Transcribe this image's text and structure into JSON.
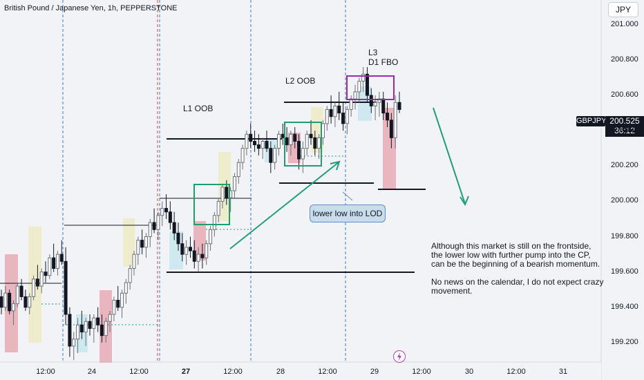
{
  "title": "British Pound / Japanese Yen, 1h, PEPPERSTONE",
  "currency": "JPY",
  "symbol_tag": "GBPJPY",
  "current_price": "200.525",
  "countdown": "36:12",
  "annotations": {
    "l1": "L1 OOB",
    "l2": "L2 OOB",
    "l3_line1": "L3",
    "l3_line2": "D1 FBO",
    "callout": "lower low into LOD"
  },
  "note": {
    "p1": [
      "Although this market is still on the frontside,",
      "the lower low with further pump into the CP,",
      "can be the beginning of a bearish momentum."
    ],
    "p2": [
      "No news on the calendar, I do not expect crazy",
      "movement."
    ]
  },
  "colors": {
    "up": "#6b6f77",
    "down": "#131722",
    "zone_red": "#e5a0ac",
    "zone_yellow": "#ecebc4",
    "zone_blue": "#c9e6ee",
    "box_green": "#1e9e6e",
    "box_purple": "#9c27b0",
    "arrow": "#1e9e7e",
    "session_blue": "#3a7bd5",
    "session_red": "#d04848"
  },
  "chart_data": {
    "type": "candlestick",
    "y_ticks": [
      "201.000",
      "200.800",
      "200.600",
      "200.400",
      "200.200",
      "200.000",
      "199.800",
      "199.600",
      "199.400",
      "199.200"
    ],
    "x_ticks": [
      {
        "label": "12:00",
        "bold": false
      },
      {
        "label": "24",
        "bold": false
      },
      {
        "label": "12:00",
        "bold": false
      },
      {
        "label": "27",
        "bold": true
      },
      {
        "label": "12:00",
        "bold": false
      },
      {
        "label": "28",
        "bold": false
      },
      {
        "label": "12:00",
        "bold": false
      },
      {
        "label": "29",
        "bold": false
      },
      {
        "label": "12:00",
        "bold": false
      },
      {
        "label": "30",
        "bold": false
      },
      {
        "label": "12:00",
        "bold": false
      },
      {
        "label": "31",
        "bold": false
      }
    ],
    "ylim": [
      199.09,
      201.14
    ],
    "candles": [
      [
        199.46,
        199.5,
        199.36,
        199.4
      ],
      [
        199.4,
        199.52,
        199.38,
        199.48
      ],
      [
        199.48,
        199.5,
        199.36,
        199.38
      ],
      [
        199.38,
        199.44,
        199.3,
        199.42
      ],
      [
        199.42,
        199.54,
        199.4,
        199.52
      ],
      [
        199.52,
        199.56,
        199.44,
        199.46
      ],
      [
        199.46,
        199.5,
        199.38,
        199.4
      ],
      [
        199.4,
        199.48,
        199.36,
        199.46
      ],
      [
        199.46,
        199.58,
        199.44,
        199.56
      ],
      [
        199.56,
        199.64,
        199.5,
        199.52
      ],
      [
        199.52,
        199.62,
        199.48,
        199.6
      ],
      [
        199.6,
        199.66,
        199.54,
        199.58
      ],
      [
        199.58,
        199.7,
        199.56,
        199.68
      ],
      [
        199.68,
        199.76,
        199.6,
        199.62
      ],
      [
        199.62,
        199.72,
        199.58,
        199.7
      ],
      [
        199.7,
        199.78,
        199.64,
        199.66
      ],
      [
        199.66,
        199.74,
        199.3,
        199.36
      ],
      [
        199.36,
        199.4,
        199.12,
        199.18
      ],
      [
        199.18,
        199.26,
        199.1,
        199.22
      ],
      [
        199.22,
        199.34,
        199.14,
        199.3
      ],
      [
        199.3,
        199.38,
        199.22,
        199.26
      ],
      [
        199.26,
        199.34,
        199.18,
        199.32
      ],
      [
        199.32,
        199.36,
        199.24,
        199.28
      ],
      [
        199.28,
        199.36,
        199.2,
        199.34
      ],
      [
        199.34,
        199.4,
        199.26,
        199.3
      ],
      [
        199.3,
        199.36,
        199.2,
        199.24
      ],
      [
        199.24,
        199.34,
        199.2,
        199.32
      ],
      [
        199.32,
        199.38,
        199.26,
        199.36
      ],
      [
        199.36,
        199.46,
        199.32,
        199.44
      ],
      [
        199.44,
        199.52,
        199.38,
        199.4
      ],
      [
        199.4,
        199.5,
        199.34,
        199.48
      ],
      [
        199.48,
        199.56,
        199.42,
        199.54
      ],
      [
        199.54,
        199.64,
        199.5,
        199.62
      ],
      [
        199.62,
        199.72,
        199.58,
        199.7
      ],
      [
        199.7,
        199.8,
        199.64,
        199.78
      ],
      [
        199.78,
        199.84,
        199.7,
        199.74
      ],
      [
        199.74,
        199.82,
        199.68,
        199.8
      ],
      [
        199.8,
        199.9,
        199.74,
        199.88
      ],
      [
        199.88,
        199.96,
        199.82,
        199.84
      ],
      [
        199.84,
        199.94,
        199.78,
        199.92
      ],
      [
        199.92,
        200.0,
        199.86,
        199.96
      ],
      [
        199.96,
        200.04,
        199.9,
        199.94
      ],
      [
        199.94,
        200.0,
        199.84,
        199.88
      ],
      [
        199.88,
        199.94,
        199.78,
        199.82
      ],
      [
        199.82,
        199.88,
        199.72,
        199.76
      ],
      [
        199.76,
        199.82,
        199.66,
        199.7
      ],
      [
        199.7,
        199.78,
        199.64,
        199.74
      ],
      [
        199.74,
        199.8,
        199.68,
        199.72
      ],
      [
        199.72,
        199.78,
        199.62,
        199.66
      ],
      [
        199.66,
        199.74,
        199.6,
        199.7
      ],
      [
        199.7,
        199.76,
        199.62,
        199.68
      ],
      [
        199.68,
        199.78,
        199.64,
        199.76
      ],
      [
        199.76,
        199.86,
        199.72,
        199.84
      ],
      [
        199.84,
        199.94,
        199.8,
        199.92
      ],
      [
        199.92,
        200.02,
        199.88,
        200.0
      ],
      [
        200.0,
        200.1,
        199.96,
        200.08
      ],
      [
        200.08,
        200.12,
        199.98,
        200.02
      ],
      [
        200.02,
        200.08,
        199.94,
        200.06
      ],
      [
        200.06,
        200.16,
        200.02,
        200.14
      ],
      [
        200.14,
        200.24,
        200.1,
        200.22
      ],
      [
        200.22,
        200.32,
        200.18,
        200.3
      ],
      [
        200.3,
        200.4,
        200.26,
        200.38
      ],
      [
        200.38,
        200.44,
        200.3,
        200.34
      ],
      [
        200.34,
        200.4,
        200.28,
        200.32
      ],
      [
        200.32,
        200.38,
        200.26,
        200.3
      ],
      [
        200.3,
        200.36,
        200.24,
        200.34
      ],
      [
        200.34,
        200.4,
        200.28,
        200.3
      ],
      [
        200.3,
        200.34,
        200.16,
        200.22
      ],
      [
        200.22,
        200.32,
        200.18,
        200.3
      ],
      [
        200.3,
        200.4,
        200.26,
        200.38
      ],
      [
        200.38,
        200.44,
        200.32,
        200.36
      ],
      [
        200.36,
        200.42,
        200.28,
        200.32
      ],
      [
        200.32,
        200.4,
        200.26,
        200.38
      ],
      [
        200.38,
        200.42,
        200.3,
        200.34
      ],
      [
        200.34,
        200.38,
        200.18,
        200.24
      ],
      [
        200.24,
        200.34,
        200.16,
        200.3
      ],
      [
        200.3,
        200.4,
        200.26,
        200.38
      ],
      [
        200.38,
        200.46,
        200.32,
        200.36
      ],
      [
        200.36,
        200.4,
        200.26,
        200.3
      ],
      [
        200.3,
        200.38,
        200.24,
        200.36
      ],
      [
        200.36,
        200.46,
        200.32,
        200.44
      ],
      [
        200.44,
        200.54,
        200.4,
        200.52
      ],
      [
        200.52,
        200.6,
        200.44,
        200.48
      ],
      [
        200.48,
        200.56,
        200.42,
        200.54
      ],
      [
        200.54,
        200.62,
        200.46,
        200.5
      ],
      [
        200.5,
        200.56,
        200.4,
        200.44
      ],
      [
        200.44,
        200.54,
        200.38,
        200.52
      ],
      [
        200.52,
        200.6,
        200.48,
        200.58
      ],
      [
        200.58,
        200.66,
        200.52,
        200.62
      ],
      [
        200.62,
        200.7,
        200.56,
        200.68
      ],
      [
        200.68,
        200.76,
        200.62,
        200.72
      ],
      [
        200.72,
        200.76,
        200.56,
        200.6
      ],
      [
        200.6,
        200.64,
        200.5,
        200.54
      ],
      [
        200.54,
        200.6,
        200.46,
        200.56
      ],
      [
        200.56,
        200.62,
        200.48,
        200.58
      ],
      [
        200.58,
        200.62,
        200.46,
        200.5
      ],
      [
        200.5,
        200.56,
        200.42,
        200.46
      ],
      [
        200.46,
        200.5,
        200.3,
        200.36
      ],
      [
        200.36,
        200.6,
        200.3,
        200.56
      ],
      [
        200.56,
        200.62,
        200.5,
        200.52
      ]
    ]
  }
}
